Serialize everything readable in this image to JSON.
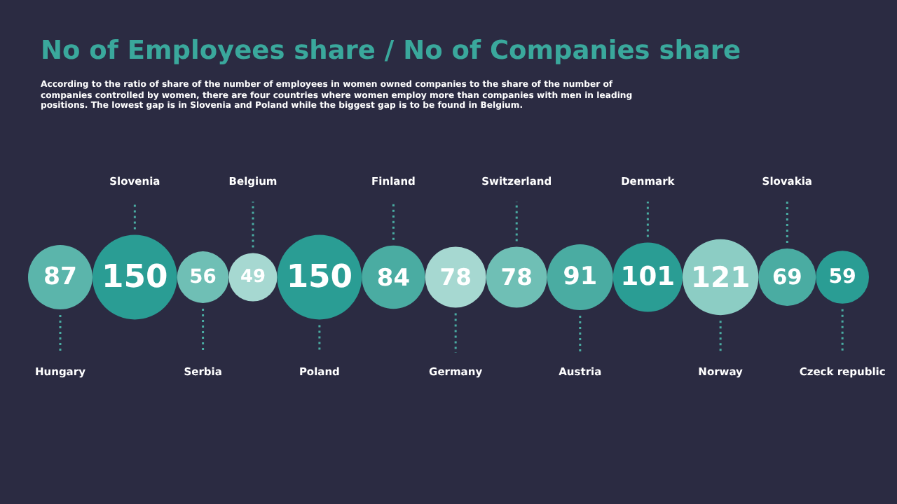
{
  "chart_data": {
    "type": "other",
    "title": "No of Employees share / No of Companies share",
    "subtitle": "According to the ratio of share of the number of employees in women owned companies to the share of the number of companies controlled by women, there are four countries where women employ more than companies with men in leading positions. The lowest gap is in Slovenia and Poland while the biggest gap is to be found in Belgium.",
    "categories": [
      "Hungary",
      "Slovenia",
      "Serbia",
      "Belgium",
      "Poland",
      "Finland",
      "Germany",
      "Switzerland",
      "Austria",
      "Denmark",
      "Norway",
      "Slovakia",
      "Czeck republic"
    ],
    "values": [
      87,
      150,
      56,
      49,
      150,
      84,
      78,
      78,
      91,
      101,
      121,
      69,
      59
    ],
    "colors": [
      "#5bb5ab",
      "#2a9d94",
      "#6fbfb5",
      "#a6d8d1",
      "#2a9d94",
      "#4aaca2",
      "#a6d8d1",
      "#6fbfb5",
      "#4aaca2",
      "#2a9d94",
      "#8ccdc4",
      "#4aaca2",
      "#2a9d94"
    ],
    "data_labels": true
  }
}
